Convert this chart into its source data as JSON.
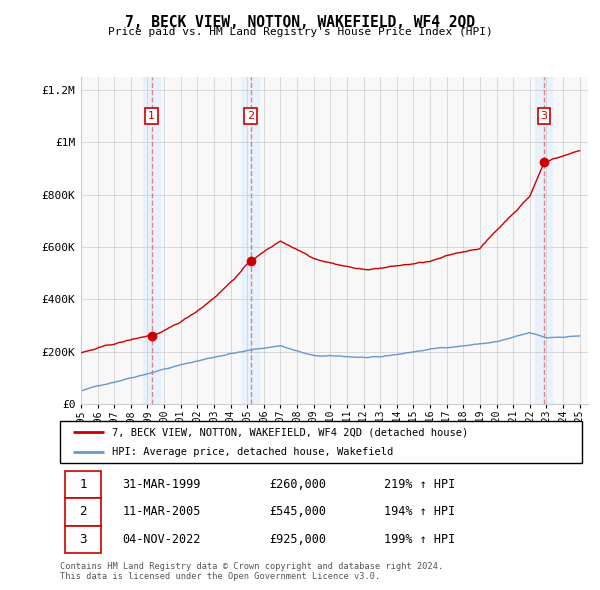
{
  "title": "7, BECK VIEW, NOTTON, WAKEFIELD, WF4 2QD",
  "subtitle": "Price paid vs. HM Land Registry's House Price Index (HPI)",
  "legend_line1": "7, BECK VIEW, NOTTON, WAKEFIELD, WF4 2QD (detached house)",
  "legend_line2": "HPI: Average price, detached house, Wakefield",
  "footer1": "Contains HM Land Registry data © Crown copyright and database right 2024.",
  "footer2": "This data is licensed under the Open Government Licence v3.0.",
  "sales": [
    {
      "num": 1,
      "date": "31-MAR-1999",
      "price": "£260,000",
      "hpi": "219% ↑ HPI",
      "year": 1999.25,
      "value": 260000
    },
    {
      "num": 2,
      "date": "11-MAR-2005",
      "price": "£545,000",
      "hpi": "194% ↑ HPI",
      "year": 2005.2,
      "value": 545000
    },
    {
      "num": 3,
      "date": "04-NOV-2022",
      "price": "£925,000",
      "hpi": "199% ↑ HPI",
      "year": 2022.84,
      "value": 925000
    }
  ],
  "red_line_color": "#cc0000",
  "blue_line_color": "#6699cc",
  "sale_dot_color": "#cc0000",
  "vline_color": "#cc0000",
  "shade_color": "#ddeeff",
  "ylim": [
    0,
    1250000
  ],
  "xlim_start": 1995.0,
  "xlim_end": 2025.5,
  "yticks": [
    0,
    200000,
    400000,
    600000,
    800000,
    1000000,
    1200000
  ],
  "ytick_labels": [
    "£0",
    "£200K",
    "£400K",
    "£600K",
    "£800K",
    "£1M",
    "£1.2M"
  ],
  "xticks": [
    1995,
    1996,
    1997,
    1998,
    1999,
    2000,
    2001,
    2002,
    2003,
    2004,
    2005,
    2006,
    2007,
    2008,
    2009,
    2010,
    2011,
    2012,
    2013,
    2014,
    2015,
    2016,
    2017,
    2018,
    2019,
    2020,
    2021,
    2022,
    2023,
    2024,
    2025
  ],
  "bg_color": "#f0f4ff"
}
